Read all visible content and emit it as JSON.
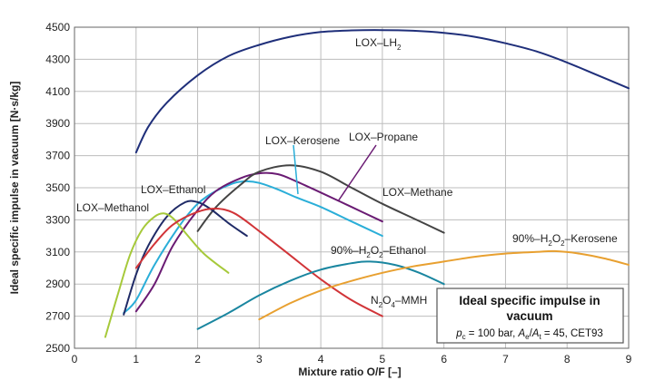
{
  "chart_data": {
    "type": "line",
    "title": "Ideal specific impulse in vacuum",
    "subtitle": "pc = 100 bar,  Ae/At = 45,  CET93",
    "xlabel": "Mixture ratio O/F  [–]",
    "ylabel": "Ideal specific impulse in vacuum [N·s/kg]",
    "xlim": [
      0,
      9
    ],
    "ylim": [
      2500,
      4500
    ],
    "xticks": [
      "0",
      "1",
      "2",
      "3",
      "4",
      "5",
      "6",
      "7",
      "8",
      "9"
    ],
    "yticks": [
      "2500",
      "2700",
      "2900",
      "3100",
      "3300",
      "3500",
      "3700",
      "3900",
      "4100",
      "4300",
      "4500"
    ],
    "grid": true,
    "series": [
      {
        "name": "LOX–LH2",
        "color": "#1f2f7a",
        "points": [
          [
            1.0,
            3720
          ],
          [
            1.2,
            3880
          ],
          [
            1.5,
            4030
          ],
          [
            2.0,
            4200
          ],
          [
            2.5,
            4320
          ],
          [
            3.0,
            4390
          ],
          [
            3.5,
            4440
          ],
          [
            4.0,
            4470
          ],
          [
            4.5,
            4480
          ],
          [
            5.0,
            4482
          ],
          [
            5.5,
            4478
          ],
          [
            6.0,
            4465
          ],
          [
            6.5,
            4440
          ],
          [
            7.0,
            4400
          ],
          [
            7.5,
            4350
          ],
          [
            8.0,
            4280
          ],
          [
            8.5,
            4200
          ],
          [
            9.0,
            4120
          ]
        ]
      },
      {
        "name": "LOX–Kerosene",
        "color": "#2aaed8",
        "points": [
          [
            0.8,
            2720
          ],
          [
            1.0,
            2800
          ],
          [
            1.3,
            3020
          ],
          [
            1.7,
            3260
          ],
          [
            2.0,
            3400
          ],
          [
            2.3,
            3480
          ],
          [
            2.6,
            3530
          ],
          [
            2.8,
            3540
          ],
          [
            3.0,
            3530
          ],
          [
            3.3,
            3490
          ],
          [
            3.6,
            3440
          ],
          [
            4.0,
            3380
          ],
          [
            4.5,
            3290
          ],
          [
            5.0,
            3200
          ]
        ]
      },
      {
        "name": "LOX–Propane",
        "color": "#6a1b73",
        "points": [
          [
            1.0,
            2730
          ],
          [
            1.3,
            2900
          ],
          [
            1.6,
            3140
          ],
          [
            2.0,
            3360
          ],
          [
            2.3,
            3480
          ],
          [
            2.7,
            3560
          ],
          [
            3.0,
            3590
          ],
          [
            3.3,
            3585
          ],
          [
            3.6,
            3540
          ],
          [
            4.0,
            3470
          ],
          [
            4.5,
            3380
          ],
          [
            5.0,
            3290
          ]
        ]
      },
      {
        "name": "LOX–Methane",
        "color": "#444444",
        "points": [
          [
            2.0,
            3230
          ],
          [
            2.3,
            3380
          ],
          [
            2.7,
            3520
          ],
          [
            3.0,
            3600
          ],
          [
            3.5,
            3640
          ],
          [
            4.0,
            3600
          ],
          [
            4.5,
            3500
          ],
          [
            5.0,
            3400
          ],
          [
            5.5,
            3310
          ],
          [
            6.0,
            3220
          ]
        ]
      },
      {
        "name": "LOX–Ethanol",
        "color": "#1f2a66",
        "points": [
          [
            0.8,
            2710
          ],
          [
            1.0,
            2960
          ],
          [
            1.2,
            3140
          ],
          [
            1.5,
            3320
          ],
          [
            1.8,
            3410
          ],
          [
            2.0,
            3410
          ],
          [
            2.2,
            3370
          ],
          [
            2.5,
            3280
          ],
          [
            2.8,
            3200
          ]
        ]
      },
      {
        "name": "LOX–Methanol",
        "color": "#a6c93a",
        "points": [
          [
            0.5,
            2570
          ],
          [
            0.7,
            2830
          ],
          [
            0.9,
            3080
          ],
          [
            1.1,
            3240
          ],
          [
            1.3,
            3320
          ],
          [
            1.45,
            3340
          ],
          [
            1.6,
            3310
          ],
          [
            1.8,
            3220
          ],
          [
            2.1,
            3090
          ],
          [
            2.5,
            2970
          ]
        ]
      },
      {
        "name": "N2O4–MMH",
        "color": "#d13438",
        "points": [
          [
            1.0,
            3000
          ],
          [
            1.3,
            3150
          ],
          [
            1.6,
            3270
          ],
          [
            2.0,
            3350
          ],
          [
            2.3,
            3370
          ],
          [
            2.6,
            3340
          ],
          [
            3.0,
            3230
          ],
          [
            3.5,
            3080
          ],
          [
            4.0,
            2930
          ],
          [
            4.5,
            2800
          ],
          [
            5.0,
            2700
          ]
        ]
      },
      {
        "name": "90%–H2O2–Ethanol",
        "color": "#1a86a0",
        "points": [
          [
            2.0,
            2620
          ],
          [
            2.5,
            2720
          ],
          [
            3.0,
            2830
          ],
          [
            3.5,
            2920
          ],
          [
            4.0,
            2990
          ],
          [
            4.5,
            3030
          ],
          [
            4.8,
            3040
          ],
          [
            5.2,
            3020
          ],
          [
            5.6,
            2970
          ],
          [
            6.0,
            2900
          ]
        ]
      },
      {
        "name": "90%–H2O2–Kerosene",
        "color": "#e8a030",
        "points": [
          [
            3.0,
            2680
          ],
          [
            3.5,
            2780
          ],
          [
            4.0,
            2860
          ],
          [
            4.5,
            2920
          ],
          [
            5.0,
            2970
          ],
          [
            5.5,
            3010
          ],
          [
            6.0,
            3040
          ],
          [
            6.5,
            3070
          ],
          [
            7.0,
            3090
          ],
          [
            7.5,
            3100
          ],
          [
            7.8,
            3105
          ],
          [
            8.2,
            3090
          ],
          [
            8.6,
            3060
          ],
          [
            9.0,
            3020
          ]
        ]
      }
    ],
    "annotations": {
      "lh2_label": "LOX–LH",
      "kerosene_label": "LOX–Kerosene",
      "propane_label": "LOX–Propane",
      "methane_label": "LOX–Methane",
      "ethanol_label": "LOX–Ethanol",
      "methanol_label": "LOX–Methanol",
      "mmh_label": "N",
      "h2o2_ethanol_label": "90%–H",
      "h2o2_kerosene_label": "90%–H",
      "sub_2": "2",
      "sub_4": "4",
      "sub_o2": "2",
      "mmh_tail": "O",
      "mmh_end": "–MMH",
      "h2o2_mid": "O",
      "h2o2_ethanol_end": "–Ethanol",
      "h2o2_kerosene_end": "–Kerosene"
    },
    "note": {
      "title_line1": "Ideal specific impulse in",
      "title_line2": "vacuum",
      "pc": "p",
      "pc_sub": "c",
      "pc_val": " = 100 bar,  ",
      "ae": "A",
      "ae_sub": "e",
      "slash": "/",
      "at": "A",
      "at_sub": "t",
      "rest": " = 45,  CET93"
    }
  }
}
